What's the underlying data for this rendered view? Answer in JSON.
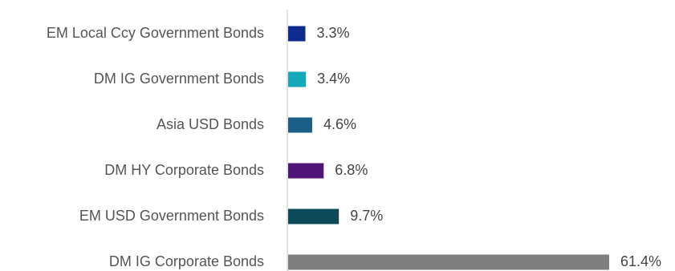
{
  "chart_data": {
    "type": "bar",
    "orientation": "horizontal",
    "categories": [
      "EM Local Ccy Government Bonds",
      "DM IG Government Bonds",
      "Asia USD Bonds",
      "DM HY Corporate Bonds",
      "EM USD Government Bonds",
      "DM IG Corporate Bonds"
    ],
    "values": [
      3.3,
      3.4,
      4.6,
      6.8,
      9.7,
      61.4
    ],
    "value_labels": [
      "3.3%",
      "3.4%",
      "4.6%",
      "6.8%",
      "9.7%",
      "61.4%"
    ],
    "colors": [
      "#0d2b8f",
      "#13a9b8",
      "#1b5f86",
      "#4f1577",
      "#0c4a5a",
      "#7f7f7f"
    ],
    "xlim": [
      0,
      61.4
    ],
    "grid": false,
    "legend": "none",
    "title": "",
    "xlabel": "",
    "ylabel": ""
  }
}
